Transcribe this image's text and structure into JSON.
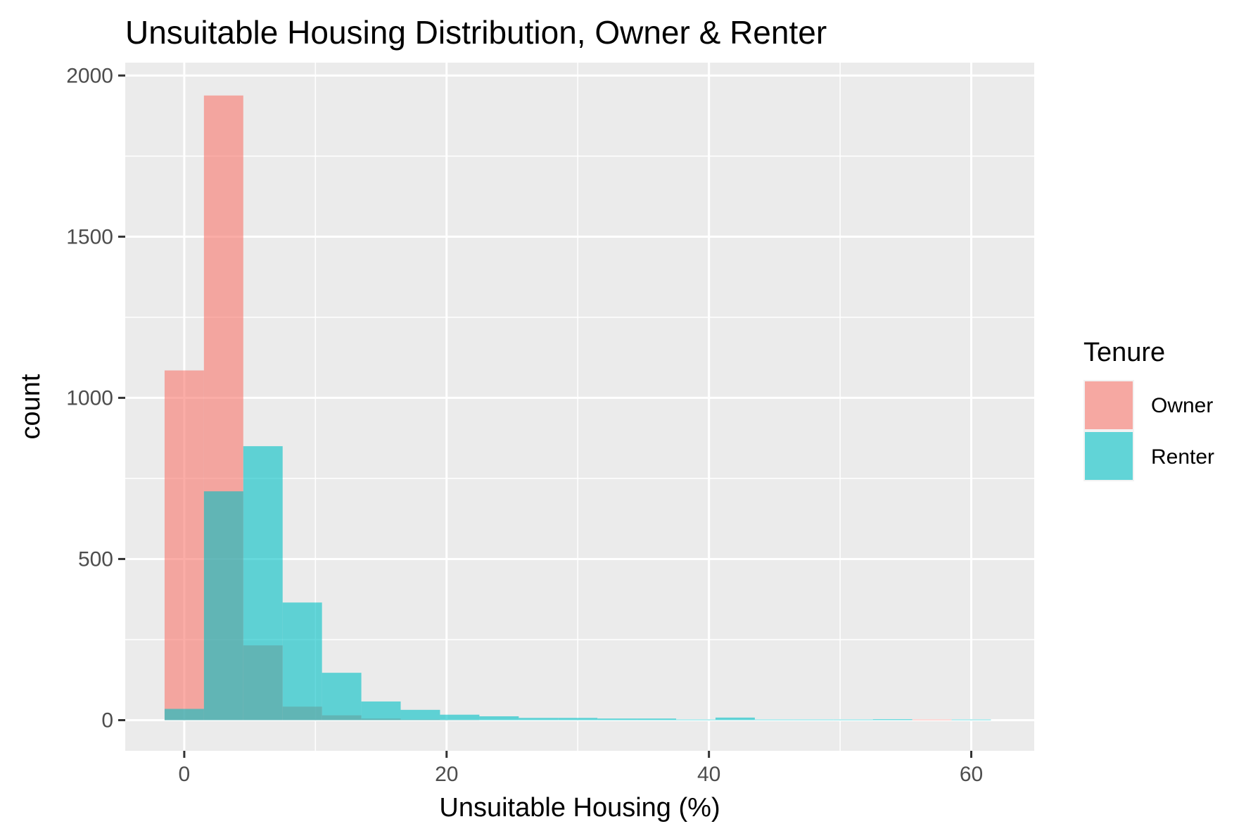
{
  "chart_data": {
    "type": "bar",
    "title": "Unsuitable Housing Distribution, Owner & Renter",
    "xlabel": "Unsuitable Housing (%)",
    "ylabel": "count",
    "xlim": [
      -4.5,
      64.8
    ],
    "ylim": [
      -95,
      2040
    ],
    "x_ticks": [
      0,
      20,
      40,
      60
    ],
    "y_ticks": [
      0,
      500,
      1000,
      1500,
      2000
    ],
    "grid": true,
    "legend_position": "right",
    "legend_title": "Tenure",
    "bin_width": 3.0,
    "bin_centers": [
      0,
      3,
      6,
      9,
      12,
      15,
      18,
      21,
      24,
      27,
      30,
      33,
      36,
      39,
      42,
      45,
      48,
      51,
      54,
      57,
      60
    ],
    "series": [
      {
        "name": "Owner",
        "color": "#F8766D",
        "values": [
          1085,
          1938,
          232,
          42,
          15,
          5,
          2,
          1,
          0,
          0,
          0,
          0,
          0,
          0,
          0,
          0,
          0,
          0,
          0,
          2,
          0
        ]
      },
      {
        "name": "Renter",
        "color": "#00BFC4",
        "values": [
          35,
          710,
          850,
          365,
          147,
          58,
          32,
          17,
          12,
          7,
          7,
          5,
          5,
          2,
          8,
          2,
          2,
          2,
          3,
          0,
          2
        ]
      }
    ]
  }
}
